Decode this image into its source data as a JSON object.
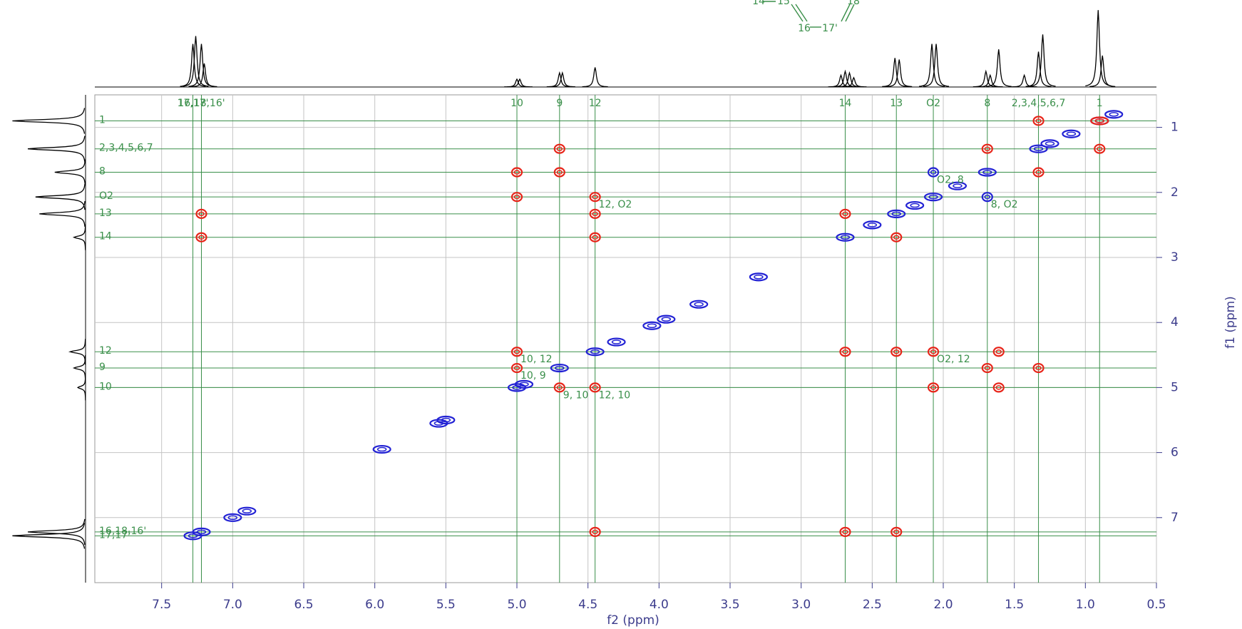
{
  "chart_data": {
    "type": "cosy",
    "x_label": "f2 (ppm)",
    "y_label": "f1 (ppm)",
    "xlim": [
      7.97,
      0.5
    ],
    "ylim": [
      0.5,
      8.0
    ],
    "xticks": [
      7.5,
      {
        "value": 7,
        "label": "7.0"
      },
      6.5,
      {
        "value": 6,
        "label": "6.0"
      },
      5.5,
      {
        "value": 5,
        "label": "5.0"
      },
      4.5,
      {
        "value": 4,
        "label": "4.0"
      },
      3.5,
      {
        "value": 3,
        "label": "3.0"
      },
      2.5,
      {
        "value": 2,
        "label": "2.0"
      },
      1.5,
      {
        "value": 1,
        "label": "1.0"
      },
      0.5
    ],
    "yticks": [
      1,
      2,
      3,
      4,
      5,
      6,
      7
    ],
    "grid": true,
    "label_color": "#3a8f4a",
    "assignments": [
      {
        "label": "17,17'",
        "ppm": 7.28
      },
      {
        "label": "16,18,16'",
        "ppm": 7.22
      },
      {
        "label": "10",
        "ppm": 5.0
      },
      {
        "label": "9",
        "ppm": 4.7
      },
      {
        "label": "12",
        "ppm": 4.45
      },
      {
        "label": "14",
        "ppm": 2.69
      },
      {
        "label": "13",
        "ppm": 2.33
      },
      {
        "label": "O2",
        "ppm": 2.07
      },
      {
        "label": "8",
        "ppm": 1.69
      },
      {
        "label": "2,3,4,5,6,7",
        "ppm": 1.33
      },
      {
        "label": "1",
        "ppm": 0.9
      }
    ],
    "cross_labels": [
      {
        "label": "O2, 8",
        "x": 2.07,
        "y": 1.69
      },
      {
        "label": "12, O2",
        "x": 4.45,
        "y": 2.07
      },
      {
        "label": "8, O2",
        "x": 1.69,
        "y": 2.07
      },
      {
        "label": "10, 12",
        "x": 5.0,
        "y": 4.45
      },
      {
        "label": "10, 9",
        "x": 5.0,
        "y": 4.7
      },
      {
        "label": "O2, 12",
        "x": 2.07,
        "y": 4.45
      },
      {
        "label": "9, 10",
        "x": 4.7,
        "y": 5.0
      },
      {
        "label": "12, 10",
        "x": 4.45,
        "y": 5.0
      }
    ],
    "series": [
      {
        "color": "#2222d4",
        "x": [
          7.22,
          7.28,
          7.0,
          6.9,
          5.95,
          5.55,
          5.5,
          5.0,
          4.95,
          4.7,
          4.45,
          4.3,
          4.05,
          3.95,
          3.72,
          3.3,
          2.69,
          2.5,
          2.33,
          2.2,
          2.07,
          1.9,
          1.69,
          1.33,
          1.25,
          1.1,
          0.9,
          0.8,
          2.07,
          1.69
        ],
        "values": [
          7.22,
          7.28,
          7.0,
          6.9,
          5.95,
          5.55,
          5.5,
          5.0,
          4.95,
          4.7,
          4.45,
          4.3,
          4.05,
          3.95,
          3.72,
          3.3,
          2.69,
          2.5,
          2.33,
          2.2,
          2.07,
          1.9,
          1.69,
          1.33,
          1.25,
          1.1,
          0.9,
          0.8,
          1.69,
          2.07
        ]
      },
      {
        "color": "#e8251a",
        "x": [
          4.7,
          4.7,
          5.0,
          4.45,
          4.45,
          2.69,
          2.33,
          1.69,
          1.33,
          1.33,
          0.9,
          2.07,
          2.07,
          1.69,
          1.33,
          2.33,
          2.69,
          4.45,
          4.7,
          5.0,
          5.0,
          4.45,
          2.69,
          2.33,
          7.22,
          7.22,
          4.45,
          5.0,
          1.61,
          1.61,
          0.9
        ],
        "values": [
          1.33,
          1.69,
          2.07,
          2.33,
          2.69,
          2.33,
          2.69,
          1.33,
          0.9,
          1.69,
          1.33,
          4.45,
          5.0,
          4.7,
          4.7,
          4.45,
          4.45,
          5.0,
          5.0,
          4.45,
          4.7,
          7.22,
          7.22,
          7.22,
          2.33,
          2.69,
          2.07,
          1.69,
          5.0,
          4.45,
          0.9
        ]
      }
    ],
    "projection_f2": {
      "x": [
        7.28,
        7.26,
        7.22,
        7.2,
        5.0,
        4.98,
        4.7,
        4.68,
        4.45,
        2.72,
        2.69,
        2.66,
        2.63,
        2.34,
        2.31,
        2.08,
        2.05,
        1.7,
        1.67,
        1.61,
        1.43,
        1.33,
        1.3,
        0.91,
        0.88
      ],
      "values": [
        55,
        65,
        55,
        30,
        10,
        10,
        18,
        18,
        25,
        15,
        20,
        18,
        12,
        37,
        35,
        55,
        55,
        20,
        15,
        48,
        15,
        45,
        67,
        98,
        40
      ]
    },
    "projection_f1": {
      "x": [
        0.9,
        1.33,
        1.69,
        2.07,
        2.33,
        2.69,
        4.45,
        4.7,
        5.0,
        7.22,
        7.28
      ],
      "values": [
        95,
        75,
        40,
        65,
        60,
        15,
        20,
        15,
        10,
        75,
        95
      ]
    },
    "structure_labels": [
      "14",
      "15",
      "18",
      "16",
      "17'"
    ]
  }
}
